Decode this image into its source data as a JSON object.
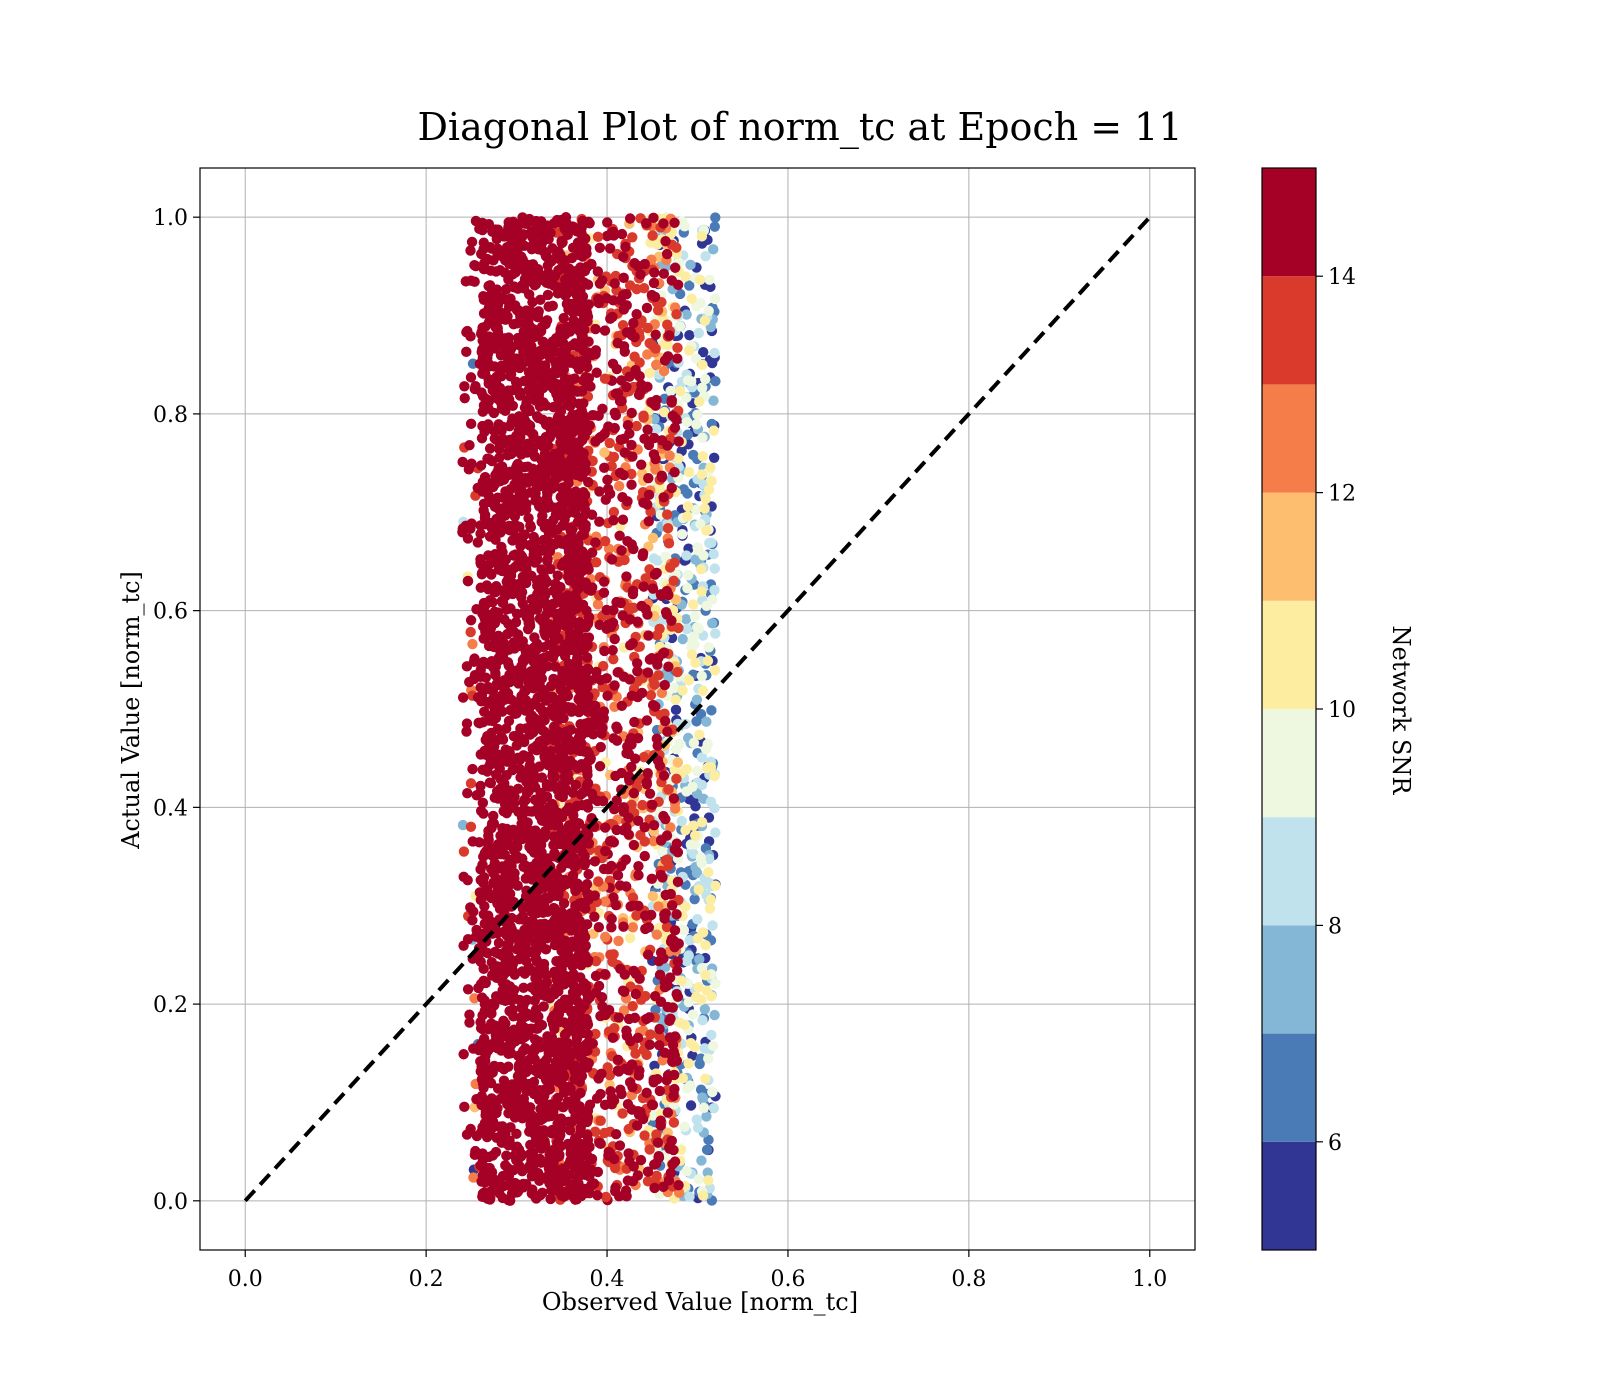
{
  "chart_data": {
    "type": "scatter",
    "title": "Diagonal Plot of norm_tc at Epoch = 11",
    "xlabel": "Observed Value [norm_tc]",
    "ylabel": "Actual Value [norm_tc]",
    "xlim": [
      -0.05,
      1.05
    ],
    "ylim": [
      -0.05,
      1.05
    ],
    "x_ticks": [
      "0.0",
      "0.2",
      "0.4",
      "0.6",
      "0.8",
      "1.0"
    ],
    "y_ticks": [
      "0.0",
      "0.2",
      "0.4",
      "0.6",
      "0.8",
      "1.0"
    ],
    "grid": true,
    "diagonal_reference_line": {
      "from": [
        0,
        0
      ],
      "to": [
        1,
        1
      ],
      "style": "dashed",
      "color": "#000000"
    },
    "point_cloud": {
      "description_x_range": [
        0.24,
        0.525
      ],
      "y_range": [
        0.0,
        1.0
      ],
      "high_snr_band_x": [
        0.26,
        0.38
      ],
      "low_snr_band_x": [
        0.45,
        0.52
      ]
    },
    "colorbar": {
      "label": "Network SNR",
      "range": [
        5,
        15
      ],
      "tick_values": [
        6,
        8,
        10,
        12,
        14
      ],
      "tick_labels": [
        "6",
        "8",
        "10",
        "12",
        "14"
      ],
      "bins": [
        {
          "from": 5,
          "to": 6,
          "color": "#313695"
        },
        {
          "from": 6,
          "to": 7,
          "color": "#4a7bb7"
        },
        {
          "from": 7,
          "to": 8,
          "color": "#84b7d6"
        },
        {
          "from": 8,
          "to": 9,
          "color": "#c0e2ec"
        },
        {
          "from": 9,
          "to": 10,
          "color": "#eef7df"
        },
        {
          "from": 10,
          "to": 11,
          "color": "#fdeda0"
        },
        {
          "from": 11,
          "to": 12,
          "color": "#fdbe70"
        },
        {
          "from": 12,
          "to": 13,
          "color": "#f57d4a"
        },
        {
          "from": 13,
          "to": 14,
          "color": "#d93a2b"
        },
        {
          "from": 14,
          "to": 15,
          "color": "#a50026"
        }
      ]
    }
  }
}
